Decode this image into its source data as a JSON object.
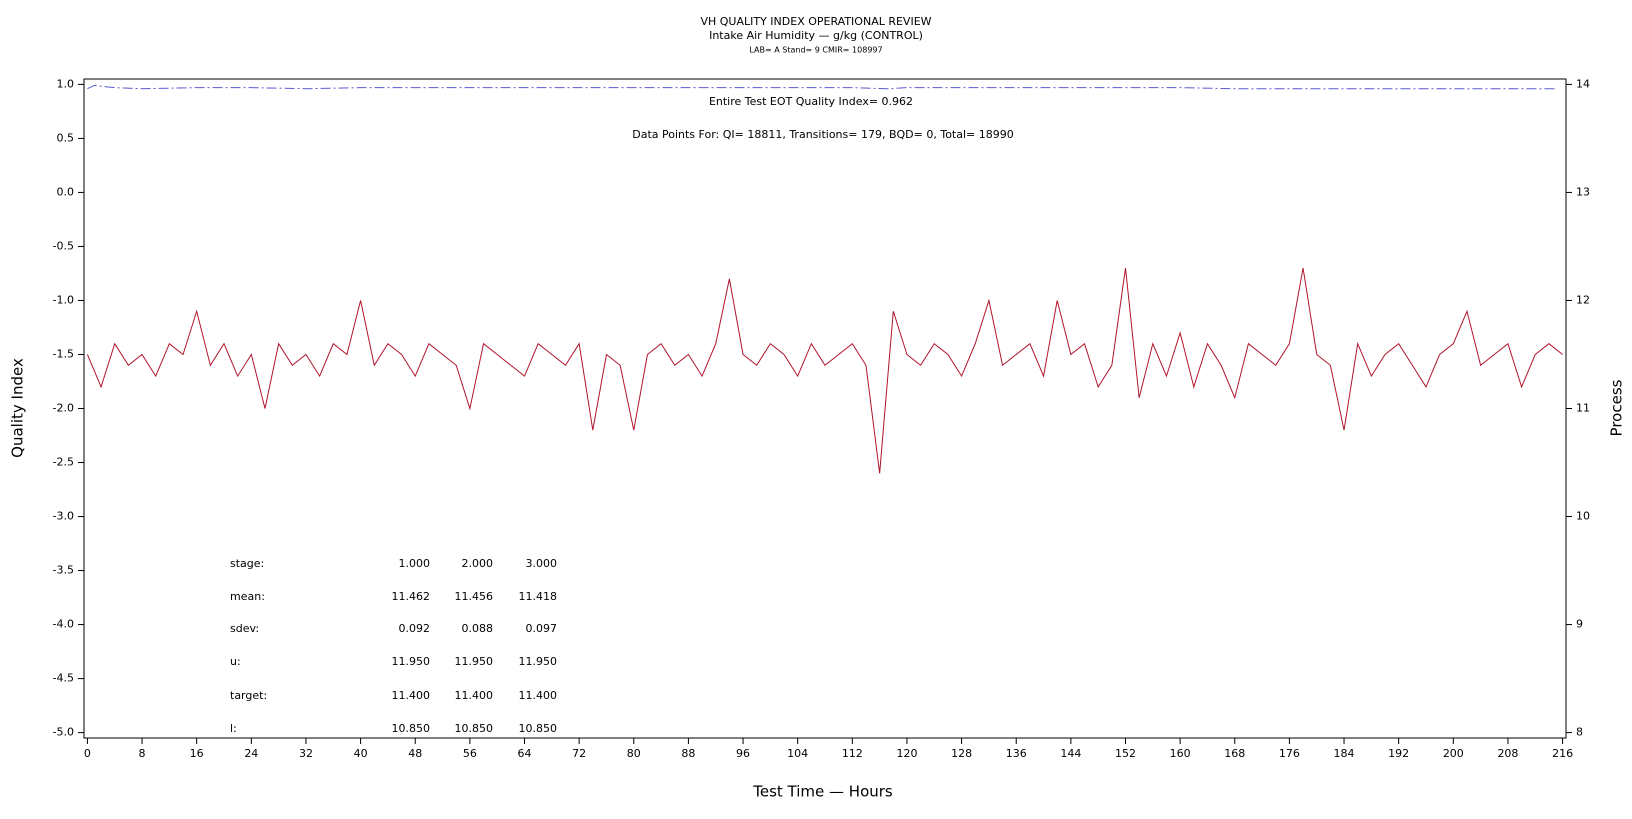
{
  "chart_data": {
    "type": "line",
    "title": "VH QUALITY INDEX OPERATIONAL REVIEW",
    "subtitle": "Intake Air Humidity — g/kg (CONTROL)",
    "subtitle2": "LAB= A Stand= 9 CMIR= 108997",
    "annotations": [
      "Entire Test EOT Quality Index=   0.962",
      "Data Points For: QI= 18811, Transitions=   179, BQD=    0, Total= 18990"
    ],
    "stats_table": [
      [
        "stage:",
        "1.000",
        "2.000",
        "3.000"
      ],
      [
        "mean:",
        "11.462",
        "11.456",
        "11.418"
      ],
      [
        "sdev:",
        "0.092",
        "0.088",
        "0.097"
      ],
      [
        "u:",
        "11.950",
        "11.950",
        "11.950"
      ],
      [
        "target:",
        "11.400",
        "11.400",
        "11.400"
      ],
      [
        "l:",
        "10.850",
        "10.850",
        "10.850"
      ]
    ],
    "xlabel": "Test Time — Hours",
    "ylabel": "Quality Index",
    "y2label": "Process",
    "xlim": [
      -0.5,
      216.5
    ],
    "xticks": [
      0,
      8,
      16,
      24,
      32,
      40,
      48,
      56,
      64,
      72,
      80,
      88,
      96,
      104,
      112,
      120,
      128,
      136,
      144,
      152,
      160,
      168,
      176,
      184,
      192,
      200,
      208,
      216
    ],
    "ylim": [
      -5.05,
      1.05
    ],
    "yticks": [
      {
        "value": 1,
        "label": "1.0"
      },
      0.5,
      {
        "value": 0,
        "label": "0.0"
      },
      -0.5,
      {
        "value": -1,
        "label": "-1.0"
      },
      -1.5,
      {
        "value": -2,
        "label": "-2.0"
      },
      -2.5,
      {
        "value": -3,
        "label": "-3.0"
      },
      -3.5,
      {
        "value": -4,
        "label": "-4.0"
      },
      -4.5,
      {
        "value": -5,
        "label": "-5.0"
      }
    ],
    "y2lim": [
      7.95,
      14.05
    ],
    "y2ticks": [
      8,
      9,
      10,
      11,
      12,
      13,
      14
    ],
    "series": [
      {
        "name": "Quality Index",
        "color": "#5a5ad0",
        "dashed": true,
        "x": [
          0,
          1,
          4,
          8,
          16,
          24,
          32,
          40,
          48,
          56,
          64,
          72,
          80,
          88,
          96,
          104,
          112,
          117,
          120,
          128,
          136,
          144,
          152,
          160,
          168,
          176,
          184,
          192,
          200,
          208,
          215
        ],
        "values": [
          0.96,
          0.99,
          0.97,
          0.96,
          0.97,
          0.97,
          0.96,
          0.97,
          0.97,
          0.97,
          0.97,
          0.97,
          0.97,
          0.97,
          0.97,
          0.97,
          0.97,
          0.96,
          0.97,
          0.97,
          0.97,
          0.97,
          0.97,
          0.97,
          0.96,
          0.96,
          0.96,
          0.96,
          0.96,
          0.96,
          0.96
        ]
      },
      {
        "name": "Process",
        "color": "#b0142c",
        "axis": "y2",
        "x": [
          0,
          2,
          4,
          6,
          8,
          10,
          12,
          14,
          16,
          18,
          20,
          22,
          24,
          26,
          28,
          30,
          32,
          34,
          36,
          38,
          40,
          42,
          44,
          46,
          48,
          50,
          52,
          54,
          56,
          58,
          60,
          62,
          64,
          66,
          68,
          70,
          72,
          74,
          76,
          78,
          80,
          82,
          84,
          86,
          88,
          90,
          92,
          94,
          96,
          98,
          100,
          102,
          104,
          106,
          108,
          110,
          112,
          114,
          116,
          118,
          120,
          122,
          124,
          126,
          128,
          130,
          132,
          134,
          136,
          138,
          140,
          142,
          144,
          146,
          148,
          150,
          152,
          154,
          156,
          158,
          160,
          162,
          164,
          166,
          168,
          170,
          172,
          174,
          176,
          178,
          180,
          182,
          184,
          186,
          188,
          190,
          192,
          194,
          196,
          198,
          200,
          202,
          204,
          206,
          208,
          210,
          212,
          214,
          216
        ],
        "values": [
          11.5,
          11.2,
          11.6,
          11.4,
          11.5,
          11.3,
          11.6,
          11.5,
          11.9,
          11.4,
          11.6,
          11.3,
          11.5,
          11.0,
          11.6,
          11.4,
          11.5,
          11.3,
          11.6,
          11.5,
          12.0,
          11.4,
          11.6,
          11.5,
          11.3,
          11.6,
          11.5,
          11.4,
          11.0,
          11.6,
          11.5,
          11.4,
          11.3,
          11.6,
          11.5,
          11.4,
          11.6,
          10.8,
          11.5,
          11.4,
          10.8,
          11.5,
          11.6,
          11.4,
          11.5,
          11.3,
          11.6,
          12.2,
          11.5,
          11.4,
          11.6,
          11.5,
          11.3,
          11.6,
          11.4,
          11.5,
          11.6,
          11.4,
          10.4,
          11.9,
          11.5,
          11.4,
          11.6,
          11.5,
          11.3,
          11.6,
          12.0,
          11.4,
          11.5,
          11.6,
          11.3,
          12.0,
          11.5,
          11.6,
          11.2,
          11.4,
          12.3,
          11.1,
          11.6,
          11.3,
          11.7,
          11.2,
          11.6,
          11.4,
          11.1,
          11.6,
          11.5,
          11.4,
          11.6,
          12.3,
          11.5,
          11.4,
          10.8,
          11.6,
          11.3,
          11.5,
          11.6,
          11.4,
          11.2,
          11.5,
          11.6,
          11.9,
          11.4,
          11.5,
          11.6,
          11.2,
          11.5,
          11.6,
          11.5
        ]
      }
    ]
  }
}
